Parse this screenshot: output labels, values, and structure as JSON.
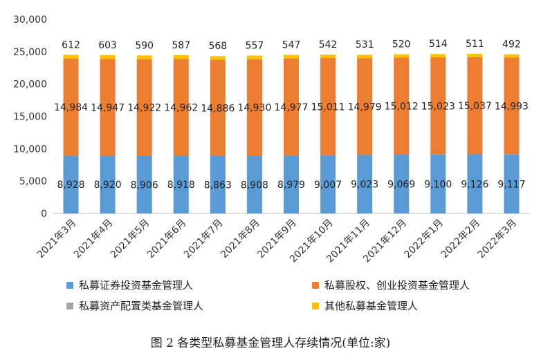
{
  "chart_data": {
    "type": "bar",
    "stacked": true,
    "categories": [
      "2021年3月",
      "2021年4月",
      "2021年5月",
      "2021年6月",
      "2021年7月",
      "2021年8月",
      "2021年9月",
      "2021年10月",
      "2021年11月",
      "2021年12月",
      "2022年1月",
      "2022年2月",
      "2022年3月"
    ],
    "series": [
      {
        "name": "私募证券投资基金管理人",
        "color": "#5B9BD5",
        "values": [
          8928,
          8920,
          8906,
          8918,
          8863,
          8908,
          8979,
          9007,
          9023,
          9069,
          9100,
          9126,
          9117
        ],
        "labels": [
          "8,928",
          "8,920",
          "8,906",
          "8,918",
          "8,863",
          "8,908",
          "8,979",
          "9,007",
          "9,023",
          "9,069",
          "9,100",
          "9,126",
          "9,117"
        ]
      },
      {
        "name": "私募股权、创业投资基金管理人",
        "color": "#ED7D31",
        "values": [
          14984,
          14947,
          14922,
          14962,
          14886,
          14930,
          14977,
          15011,
          14979,
          15012,
          15023,
          15037,
          14993
        ],
        "labels": [
          "14,984",
          "14,947",
          "14,922",
          "14,962",
          "14,886",
          "14,930",
          "14,977",
          "15,011",
          "14,979",
          "15,012",
          "15,023",
          "15,037",
          "14,993"
        ]
      },
      {
        "name": "私募资产配置类基金管理人",
        "color": "#A5A5A5",
        "values": [
          0,
          0,
          0,
          0,
          0,
          0,
          0,
          0,
          0,
          0,
          0,
          0,
          0
        ],
        "labels": []
      },
      {
        "name": "其他私募基金管理人",
        "color": "#FFC000",
        "values": [
          612,
          603,
          590,
          587,
          568,
          557,
          547,
          542,
          531,
          520,
          514,
          511,
          492
        ],
        "labels": [
          "612",
          "603",
          "590",
          "587",
          "568",
          "557",
          "547",
          "542",
          "531",
          "520",
          "514",
          "511",
          "492"
        ]
      }
    ],
    "ylim": [
      0,
      30000
    ],
    "yticks": [
      0,
      5000,
      10000,
      15000,
      20000,
      25000,
      30000
    ],
    "ytick_labels": [
      "0",
      "5,000",
      "10,000",
      "15,000",
      "20,000",
      "25,000",
      "30,000"
    ],
    "grid": false,
    "legend_position": "bottom",
    "caption": "图 2 各类型私募基金管理人存续情况(单位:家)"
  }
}
